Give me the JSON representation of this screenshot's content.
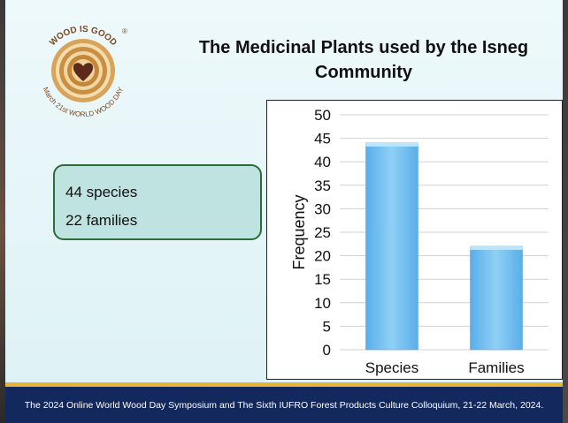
{
  "logo": {
    "ring_text_top": "WOOD IS GOOD",
    "ring_text_bottom": "March 21st WORLD WOOD DAY",
    "registered": "®"
  },
  "slide": {
    "title_line1": "The Medicinal Plants used by the Isneg",
    "title_line2": "Community"
  },
  "info_box": {
    "species_text": "44 species",
    "families_text": "22 families"
  },
  "chart_data": {
    "type": "bar",
    "categories": [
      "Species",
      "Families"
    ],
    "values": [
      44,
      22
    ],
    "ylabel": "Frequency",
    "ylim": [
      0,
      50
    ],
    "yticks": [
      0,
      5,
      10,
      15,
      20,
      25,
      30,
      35,
      40,
      45,
      50
    ],
    "gridlines": true,
    "bar_color": "#6cb8ee"
  },
  "footer": {
    "text": "The 2024 Online World Wood Day Symposium and The Sixth IUFRO Forest Products Culture Colloquium, 21-22 March, 2024."
  }
}
